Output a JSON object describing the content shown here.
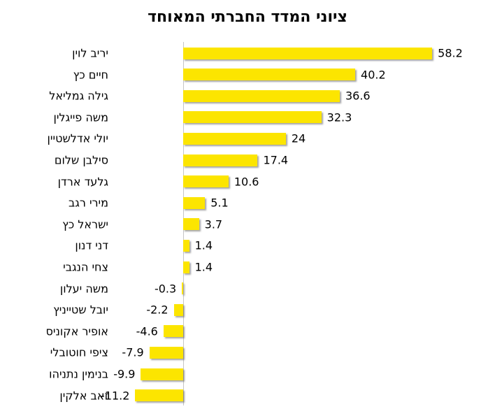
{
  "chart_data": {
    "type": "bar",
    "orientation": "horizontal",
    "title": "ציוני המדד החברתי המאוחד",
    "categories": [
      "יריב לוין",
      "חיים כץ",
      "גילה גמליאל",
      "משה פייגלין",
      "יולי אדלשטיין",
      "סילבן שלום",
      "גלעד ארדן",
      "מירי רגב",
      "ישראל כץ",
      "דני דנון",
      "צחי הנגבי",
      "משה יעלון",
      "יובל שטייניץ",
      "אופיר אקוניס",
      "ציפי חוטובלי",
      "בנימין נתניהו",
      "זאב אלקין"
    ],
    "values": [
      58.2,
      40.2,
      36.6,
      32.3,
      24,
      17.4,
      10.6,
      5.1,
      3.7,
      1.4,
      1.4,
      -0.3,
      -2.2,
      -4.6,
      -7.9,
      -9.9,
      -11.2
    ],
    "value_labels": [
      "58.2",
      "40.2",
      "36.6",
      "32.3",
      "24",
      "17.4",
      "10.6",
      "5.1",
      "3.7",
      "1.4",
      "1.4",
      "-0.3",
      "-2.2",
      "-4.6",
      "-7.9",
      "-9.9",
      "-11.2"
    ],
    "xlim": [
      -15,
      65
    ],
    "xlabel": "",
    "ylabel": "",
    "grid": false,
    "legend": false,
    "value_axis_visible": false,
    "bar_color": "#fce500",
    "axis_line_color": "#c6c6c6",
    "title_color": "#000000",
    "label_color": "#000000"
  }
}
